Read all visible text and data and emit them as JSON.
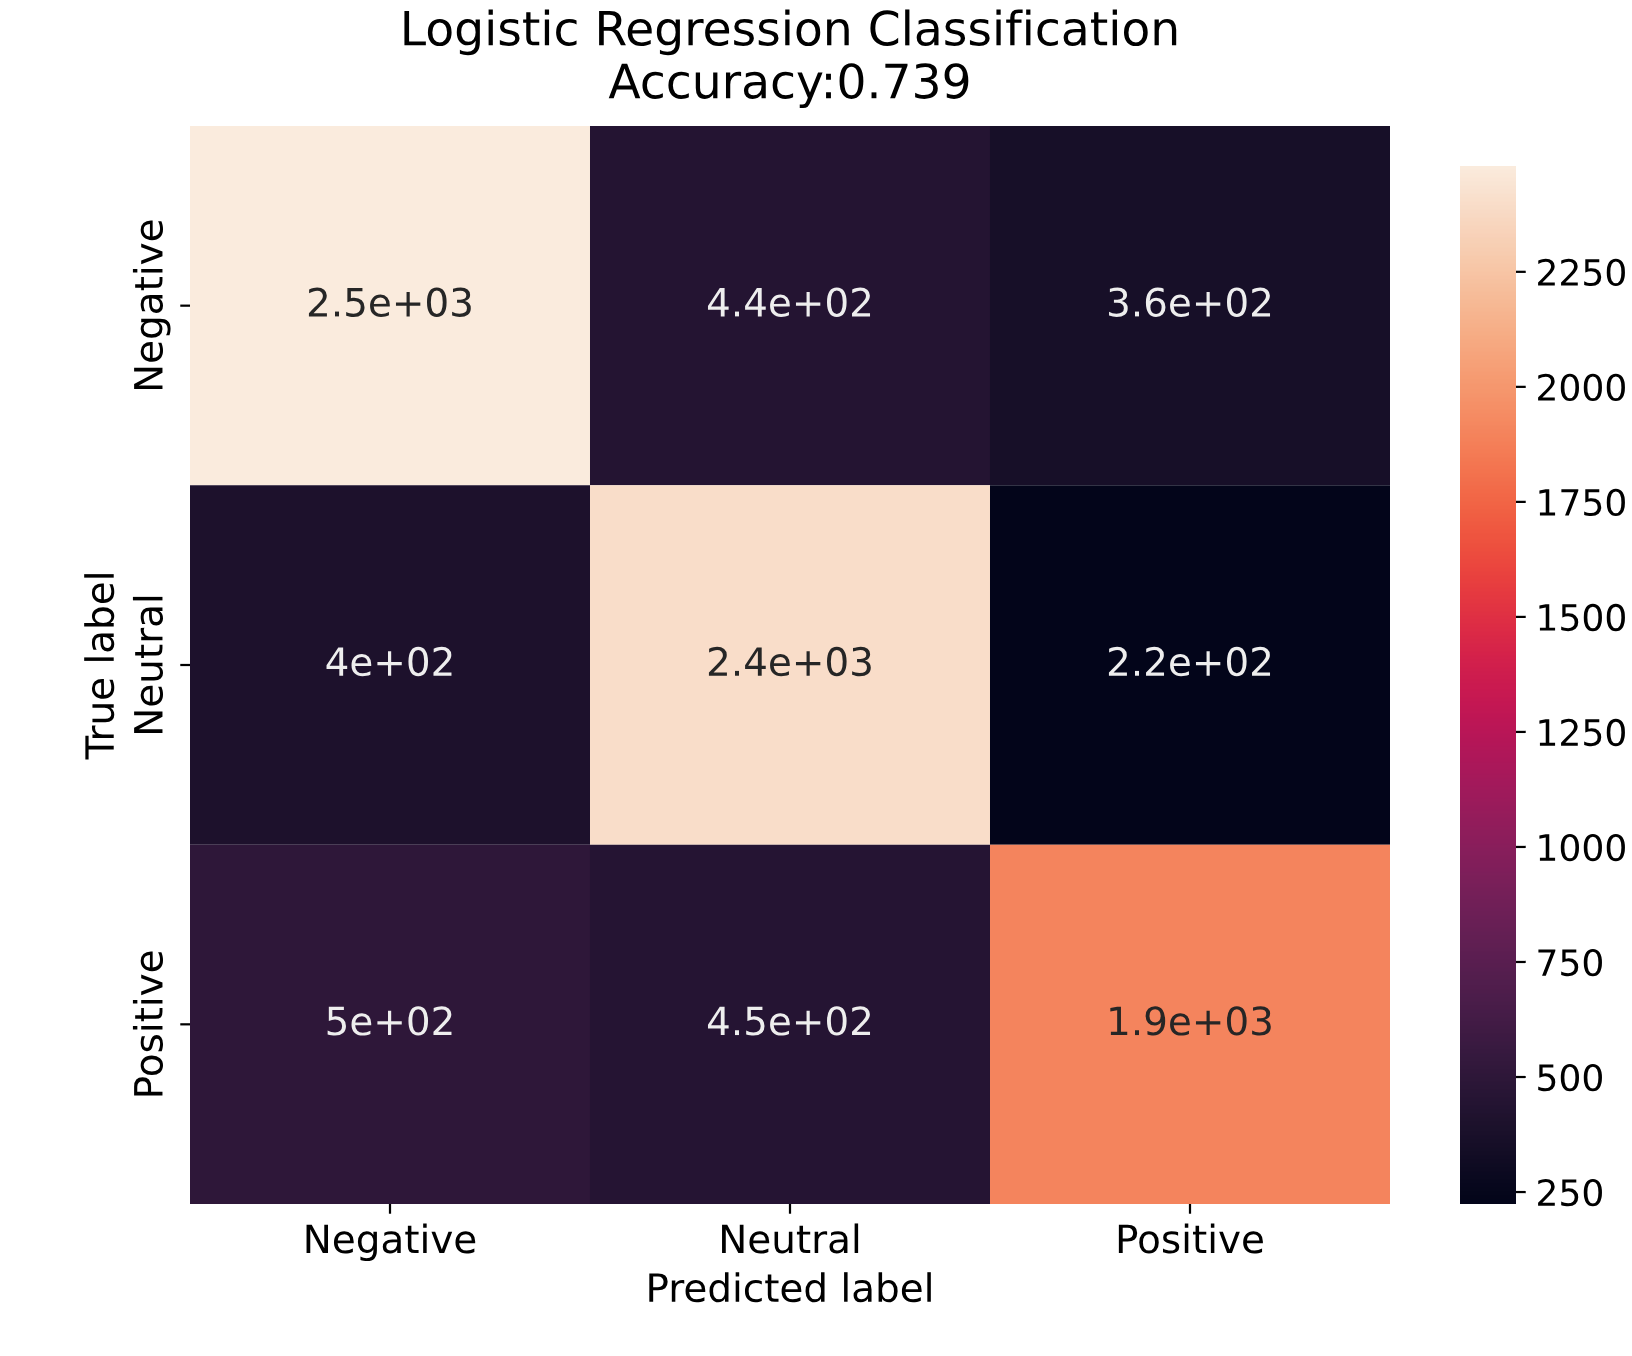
{
  "chart_data": {
    "type": "heatmap",
    "title": "Logistic Regression Classification\nAccuracy:0.739",
    "xlabel": "Predicted label",
    "ylabel": "True label",
    "categories": [
      "Negative",
      "Neutral",
      "Positive"
    ],
    "y_categories": [
      "Negative",
      "Neutral",
      "Positive"
    ],
    "cells": [
      [
        2480,
        440,
        360
      ],
      [
        400,
        2400,
        224
      ],
      [
        500,
        450,
        1900
      ]
    ],
    "cell_labels": [
      [
        "2.5e+03",
        "4.4e+02",
        "3.6e+02"
      ],
      [
        "4e+02",
        "2.4e+03",
        "2.2e+02"
      ],
      [
        "5e+02",
        "4.5e+02",
        "1.9e+03"
      ]
    ],
    "clim": [
      224,
      2480
    ],
    "cticks": [
      250,
      500,
      750,
      1000,
      1250,
      1500,
      1750,
      2000,
      2250
    ]
  }
}
